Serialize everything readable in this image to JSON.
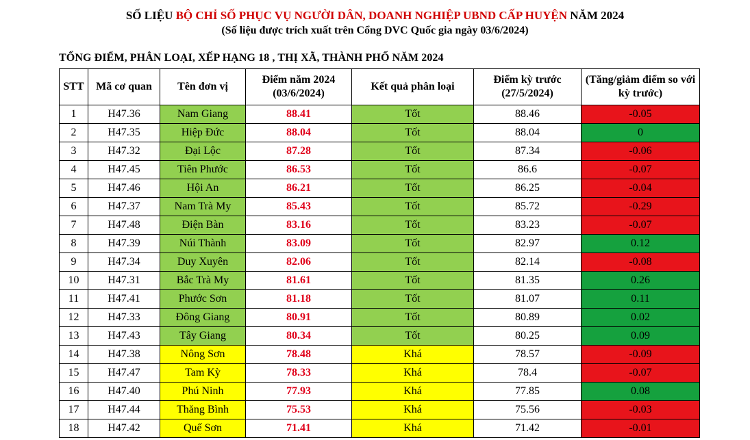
{
  "header": {
    "title_prefix": "SỐ LIỆU ",
    "title_red": "BỘ CHỈ SỐ PHỤC VỤ NGƯỜI DÂN, DOANH NGHIỆP UBND CẤP HUYỆN",
    "title_suffix": " NĂM 2024",
    "subtitle": "(Số liệu được trích xuất trên Cổng DVC Quốc gia ngày 03/6/2024)"
  },
  "section_title": "TỔNG ĐIỂM, PHÂN LOẠI, XẾP HẠNG 18 , THỊ XÃ, THÀNH PHỐ NĂM 2024",
  "columns": {
    "stt": "STT",
    "code": "Mã cơ quan",
    "name": "Tên đơn vị",
    "score": "Điểm năm 2024 (03/6/2024)",
    "result": "Kết quả phân loại",
    "prev": "Điểm kỳ trước (27/5/2024)",
    "delta": "(Tăng/giảm điểm so với kỳ trước)"
  },
  "colors": {
    "good": "#92d050",
    "fair": "#ffff00",
    "score_text": "#e0001a",
    "delta_negative": "#e8141b",
    "delta_non_negative": "#15a13e"
  },
  "rows": [
    {
      "stt": "1",
      "code": "H47.36",
      "name": "Nam Giang",
      "score": "88.41",
      "result": "Tốt",
      "prev": "88.46",
      "delta": "-0.05"
    },
    {
      "stt": "2",
      "code": "H47.35",
      "name": "Hiệp Đức",
      "score": "88.04",
      "result": "Tốt",
      "prev": "88.04",
      "delta": "0"
    },
    {
      "stt": "3",
      "code": "H47.32",
      "name": "Đại Lộc",
      "score": "87.28",
      "result": "Tốt",
      "prev": "87.34",
      "delta": "-0.06"
    },
    {
      "stt": "4",
      "code": "H47.45",
      "name": "Tiên Phước",
      "score": "86.53",
      "result": "Tốt",
      "prev": "86.6",
      "delta": "-0.07"
    },
    {
      "stt": "5",
      "code": "H47.46",
      "name": "Hội An",
      "score": "86.21",
      "result": "Tốt",
      "prev": "86.25",
      "delta": "-0.04"
    },
    {
      "stt": "6",
      "code": "H47.37",
      "name": "Nam Trà My",
      "score": "85.43",
      "result": "Tốt",
      "prev": "85.72",
      "delta": "-0.29"
    },
    {
      "stt": "7",
      "code": "H47.48",
      "name": "Điện Bàn",
      "score": "83.16",
      "result": "Tốt",
      "prev": "83.23",
      "delta": "-0.07"
    },
    {
      "stt": "8",
      "code": "H47.39",
      "name": "Núi Thành",
      "score": "83.09",
      "result": "Tốt",
      "prev": "82.97",
      "delta": "0.12"
    },
    {
      "stt": "9",
      "code": "H47.34",
      "name": "Duy Xuyên",
      "score": "82.06",
      "result": "Tốt",
      "prev": "82.14",
      "delta": "-0.08"
    },
    {
      "stt": "10",
      "code": "H47.31",
      "name": "Bắc Trà My",
      "score": "81.61",
      "result": "Tốt",
      "prev": "81.35",
      "delta": "0.26"
    },
    {
      "stt": "11",
      "code": "H47.41",
      "name": "Phước Sơn",
      "score": "81.18",
      "result": "Tốt",
      "prev": "81.07",
      "delta": "0.11"
    },
    {
      "stt": "12",
      "code": "H47.33",
      "name": "Đông Giang",
      "score": "80.91",
      "result": "Tốt",
      "prev": "80.89",
      "delta": "0.02"
    },
    {
      "stt": "13",
      "code": "H47.43",
      "name": "Tây Giang",
      "score": "80.34",
      "result": "Tốt",
      "prev": "80.25",
      "delta": "0.09"
    },
    {
      "stt": "14",
      "code": "H47.38",
      "name": "Nông Sơn",
      "score": "78.48",
      "result": "Khá",
      "prev": "78.57",
      "delta": "-0.09"
    },
    {
      "stt": "15",
      "code": "H47.47",
      "name": "Tam Kỳ",
      "score": "78.33",
      "result": "Khá",
      "prev": "78.4",
      "delta": "-0.07"
    },
    {
      "stt": "16",
      "code": "H47.40",
      "name": "Phú Ninh",
      "score": "77.93",
      "result": "Khá",
      "prev": "77.85",
      "delta": "0.08"
    },
    {
      "stt": "17",
      "code": "H47.44",
      "name": "Thăng Bình",
      "score": "75.53",
      "result": "Khá",
      "prev": "75.56",
      "delta": "-0.03"
    },
    {
      "stt": "18",
      "code": "H47.42",
      "name": "Quế Sơn",
      "score": "71.41",
      "result": "Khá",
      "prev": "71.42",
      "delta": "-0.01"
    }
  ]
}
